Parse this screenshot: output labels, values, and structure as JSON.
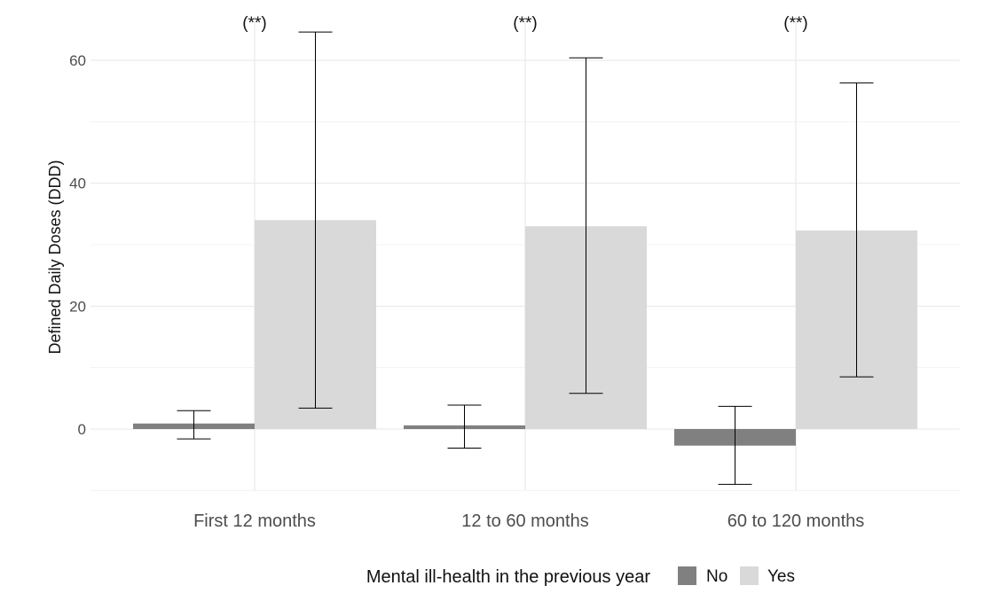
{
  "chart_data": {
    "type": "bar",
    "ylabel": "Defined Daily Doses (DDD)",
    "xlabel": "",
    "categories": [
      "First 12 months",
      "12 to 60 months",
      "60 to 120 months"
    ],
    "ylim": [
      -10,
      67
    ],
    "yticks": [
      0,
      20,
      40,
      60
    ],
    "grid": true,
    "series": [
      {
        "name": "No",
        "color": "#808080",
        "values": [
          0.9,
          0.6,
          -2.7
        ],
        "ci_low": [
          -1.6,
          -3.1,
          -9.0
        ],
        "ci_high": [
          3.0,
          3.9,
          3.7
        ]
      },
      {
        "name": "Yes",
        "color": "#d9d9d9",
        "values": [
          34.0,
          33.0,
          32.3
        ],
        "ci_low": [
          3.4,
          5.8,
          8.5
        ],
        "ci_high": [
          64.6,
          60.4,
          56.3
        ]
      }
    ],
    "annotations": [
      "(**)",
      "(**)",
      "(**)"
    ],
    "legend": {
      "title": "Mental ill-health in the previous year",
      "position": "bottom",
      "entries": [
        "No",
        "Yes"
      ]
    }
  }
}
